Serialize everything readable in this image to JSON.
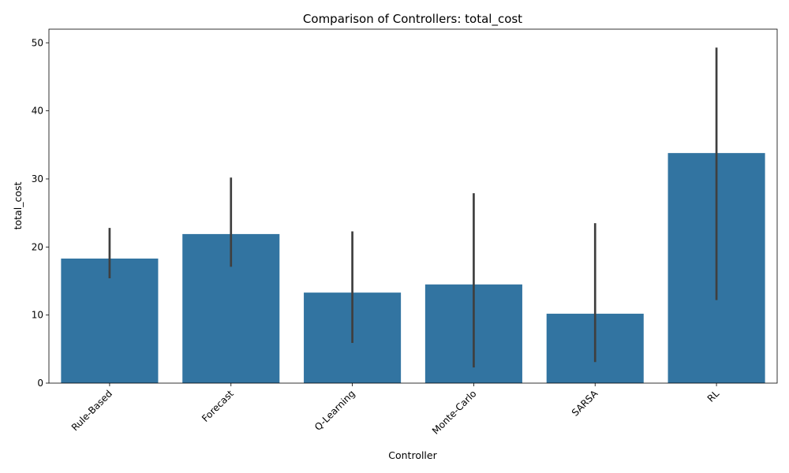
{
  "chart_data": {
    "type": "bar",
    "title": "Comparison of Controllers: total_cost",
    "xlabel": "Controller",
    "ylabel": "total_cost",
    "categories": [
      "Rule-Based",
      "Forecast",
      "Q-Learning",
      "Monte-Carlo",
      "SARSA",
      "RL"
    ],
    "values": [
      18.3,
      21.9,
      13.3,
      14.5,
      10.2,
      33.8
    ],
    "error_bars": [
      [
        15.4,
        22.8
      ],
      [
        17.1,
        30.2
      ],
      [
        5.9,
        22.3
      ],
      [
        2.3,
        27.9
      ],
      [
        3.1,
        23.5
      ],
      [
        12.2,
        49.3
      ]
    ],
    "ylim": [
      0,
      52
    ],
    "yticks": [
      0,
      10,
      20,
      30,
      40,
      50
    ],
    "grid": false,
    "legend": "none",
    "colors": {
      "bar": "#3274a1",
      "error_bar": "#3f3f3f"
    }
  }
}
